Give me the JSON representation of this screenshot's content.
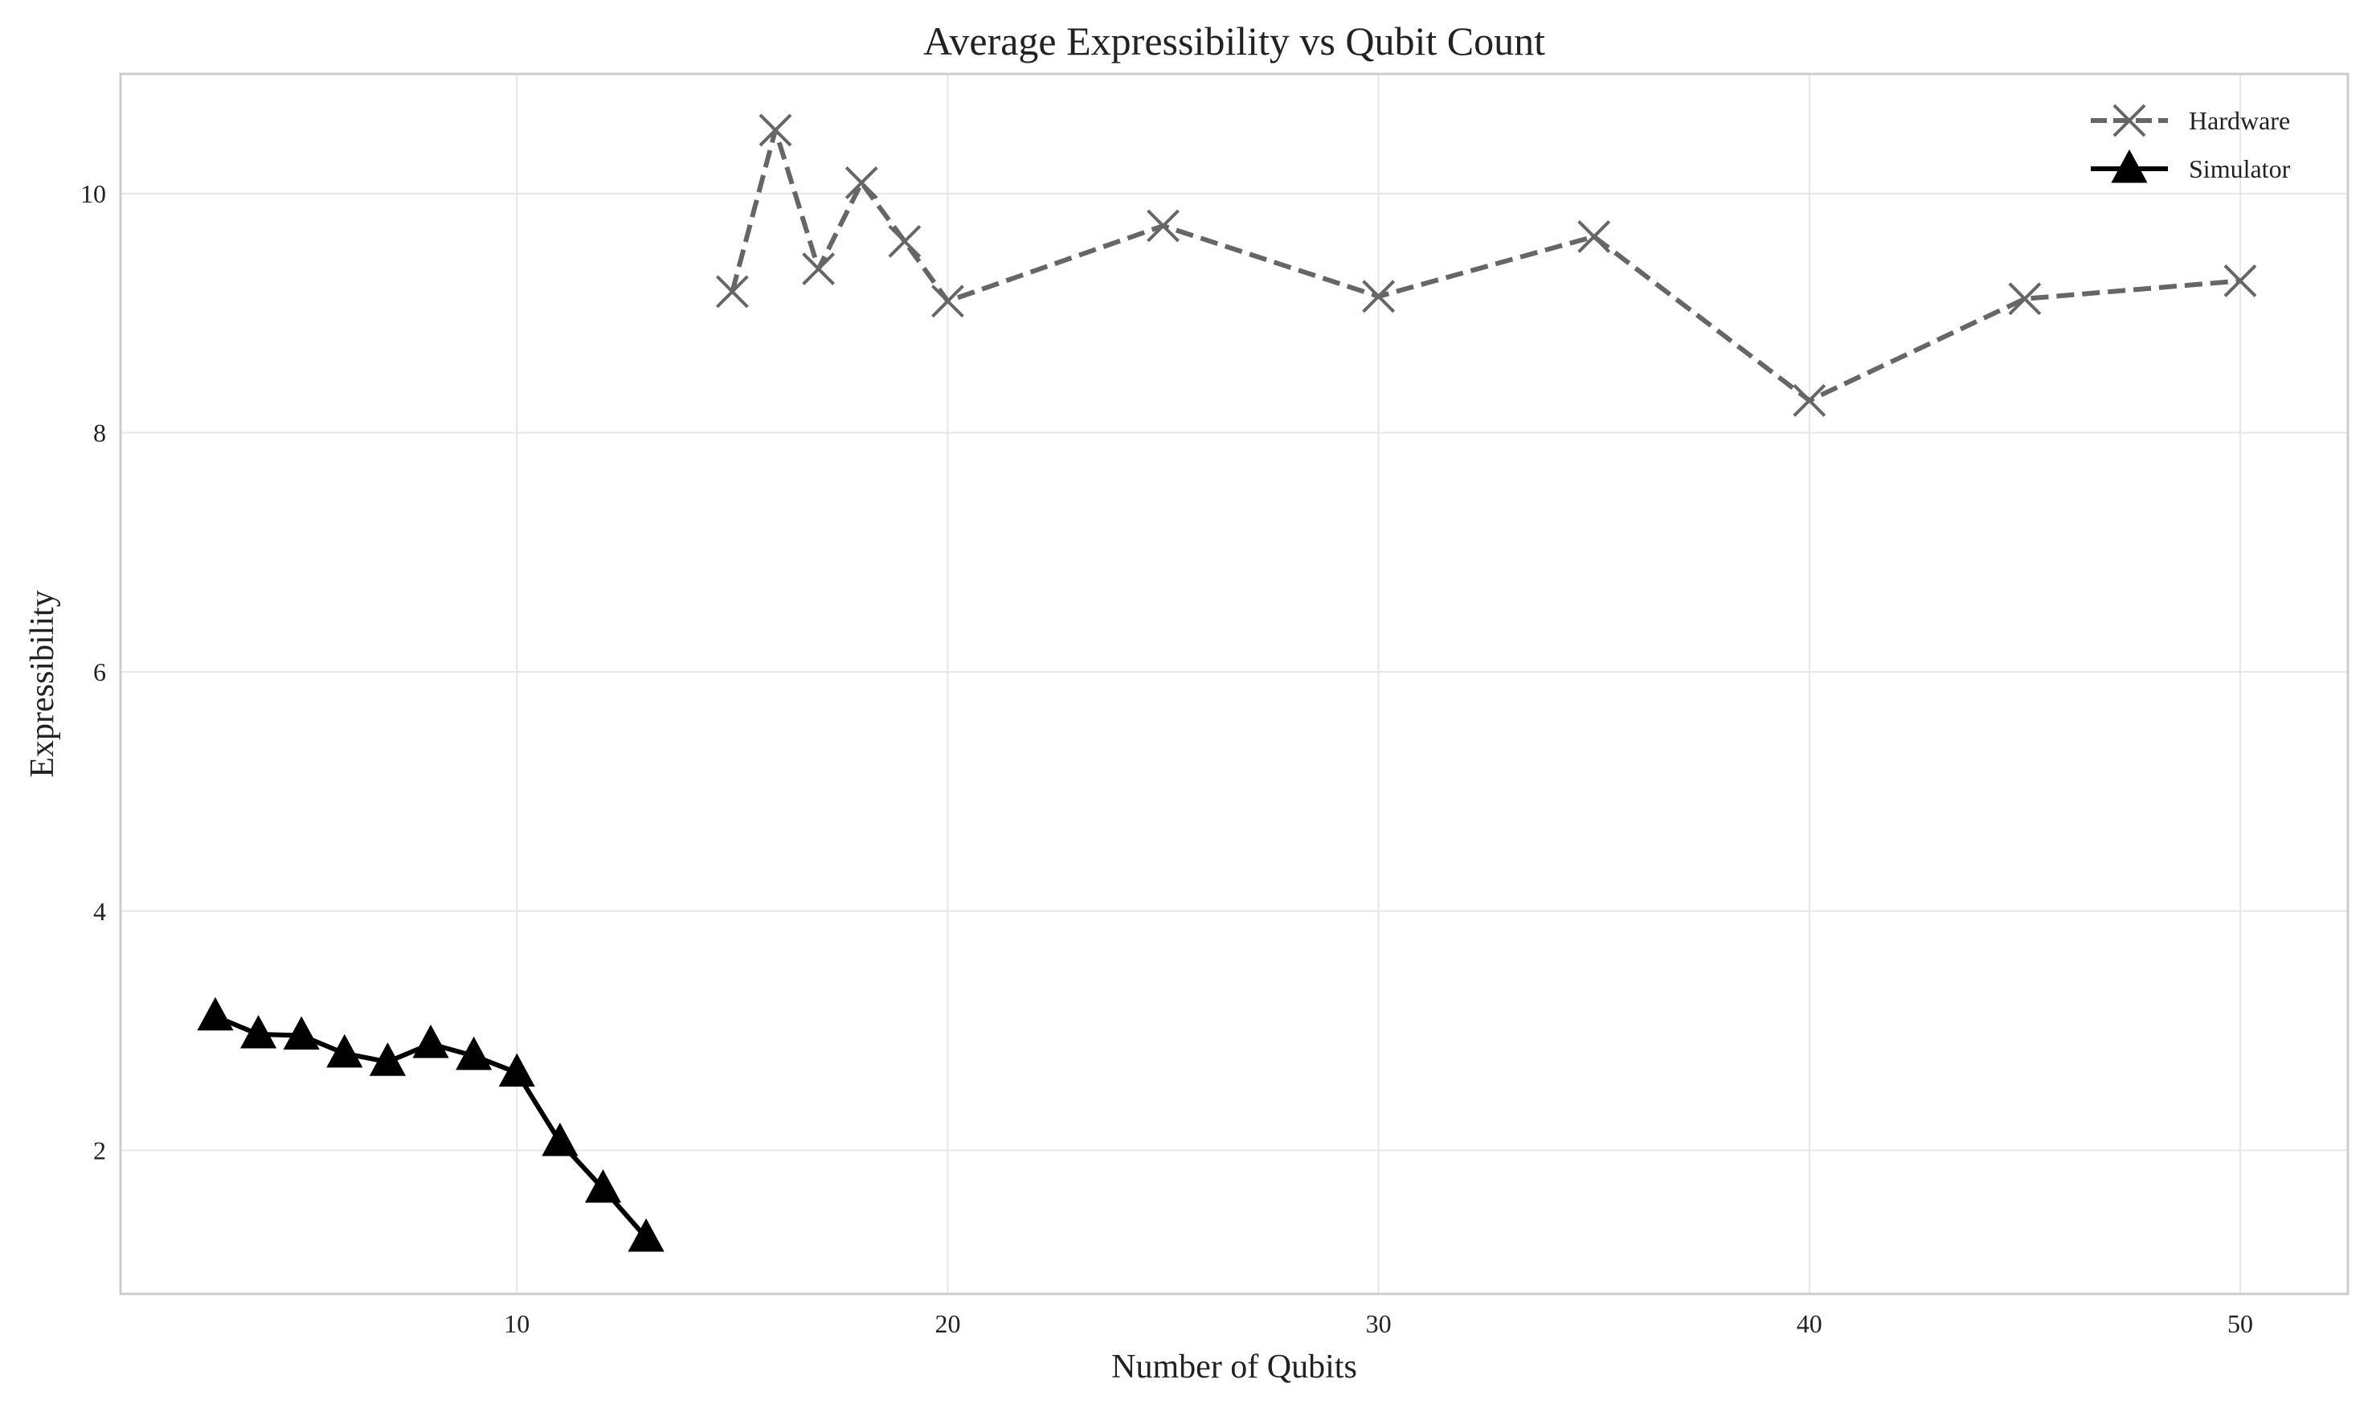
{
  "chart_data": {
    "type": "line",
    "title": "Average Expressibility vs Qubit Count",
    "xlabel": "Number of Qubits",
    "ylabel": "Expressibility",
    "xlim": [
      0.8,
      52.5
    ],
    "ylim": [
      0.8,
      11.0
    ],
    "xticks": [
      10,
      20,
      30,
      40,
      50
    ],
    "yticks": [
      2,
      4,
      6,
      8,
      10
    ],
    "grid": true,
    "legend_position": "top-right",
    "series": [
      {
        "name": "Hardware",
        "color": "#666666",
        "line_style": "dashed",
        "marker": "x",
        "x": [
          15,
          16,
          17,
          18,
          19,
          20,
          25,
          30,
          35,
          40,
          45,
          50
        ],
        "y": [
          9.18,
          10.53,
          9.37,
          10.09,
          9.6,
          9.1,
          9.73,
          9.14,
          9.64,
          8.27,
          9.12,
          9.27
        ]
      },
      {
        "name": "Simulator",
        "color": "#000000",
        "line_style": "solid",
        "marker": "triangle",
        "x": [
          3,
          4,
          5,
          6,
          7,
          8,
          9,
          10,
          11,
          12,
          13
        ],
        "y": [
          3.12,
          2.97,
          2.96,
          2.81,
          2.74,
          2.89,
          2.79,
          2.65,
          2.07,
          1.68,
          1.27
        ]
      }
    ]
  }
}
